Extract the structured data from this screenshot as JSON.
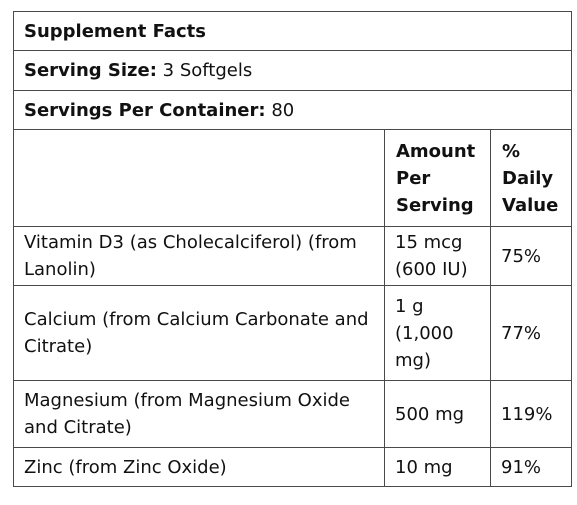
{
  "title": "Supplement Facts",
  "serving_size": {
    "label": "Serving Size:",
    "value": " 3 Softgels"
  },
  "servings_per_container": {
    "label": "Servings Per Container:",
    "value": " 80"
  },
  "columns": {
    "amount": "Amount Per Serving",
    "daily_value": "% Daily Value"
  },
  "rows": [
    {
      "nutrient": "Vitamin D3 (as Cholecalciferol) (from Lanolin)",
      "amount": "15 mcg (600 IU)",
      "dv": "75%"
    },
    {
      "nutrient": "Calcium (from Calcium Carbonate and Citrate)",
      "amount": "1 g (1,000 mg)",
      "dv": "77%"
    },
    {
      "nutrient": "Magnesium (from Magnesium Oxide and Citrate)",
      "amount": "500 mg",
      "dv": "119%"
    },
    {
      "nutrient": "Zinc (from Zinc Oxide)",
      "amount": "10 mg",
      "dv": "91%"
    }
  ]
}
